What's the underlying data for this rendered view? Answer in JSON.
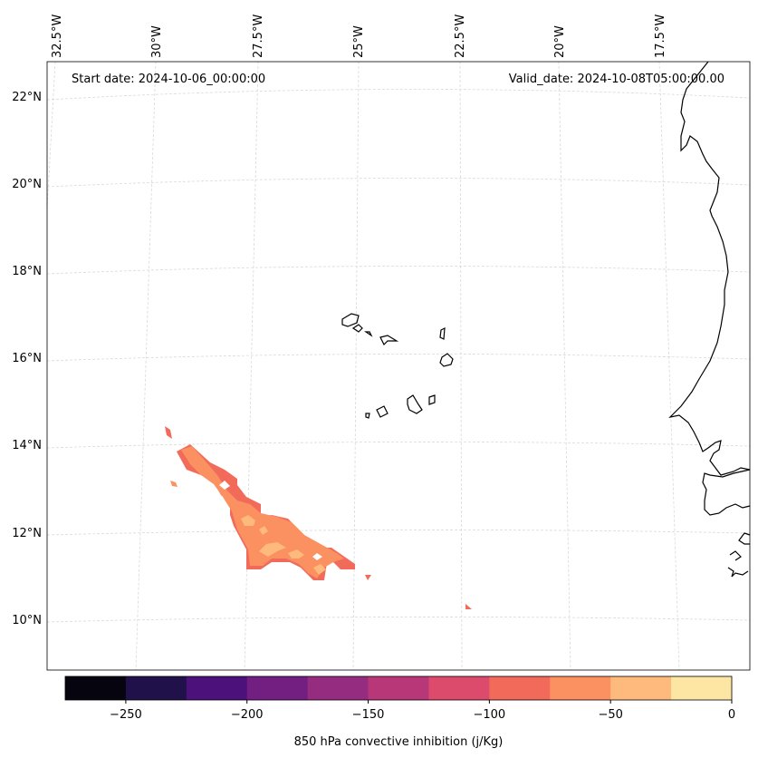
{
  "map": {
    "start_label": "Start date: 2024-10-06_00:00:00",
    "valid_label": "Valid_date: 2024-10-08T05:00:00.00",
    "lon_labels": [
      "32.5°W",
      "30°W",
      "27.5°W",
      "25°W",
      "22.5°W",
      "20°W",
      "17.5°W"
    ],
    "lat_labels": [
      "22°N",
      "20°N",
      "18°N",
      "16°N",
      "14°N",
      "12°N",
      "10°N"
    ],
    "field": "850 hPa convective inhibition",
    "region": "Cape Verde / West Africa coast",
    "colors": {
      "coastline": "#000000",
      "grid": "#d9d9d9"
    }
  },
  "colorbar": {
    "label": "850 hPa convective inhibition (j/Kg)",
    "min": -275,
    "max": 0,
    "bins": [
      {
        "from": -275,
        "to": -250,
        "color": "#05040f"
      },
      {
        "from": -250,
        "to": -225,
        "color": "#20114b"
      },
      {
        "from": -225,
        "to": -200,
        "color": "#4c117a"
      },
      {
        "from": -200,
        "to": -175,
        "color": "#721f81"
      },
      {
        "from": -175,
        "to": -150,
        "color": "#952c80"
      },
      {
        "from": -150,
        "to": -125,
        "color": "#b73779"
      },
      {
        "from": -125,
        "to": -100,
        "color": "#dc4b6b"
      },
      {
        "from": -100,
        "to": -75,
        "color": "#f16a5a"
      },
      {
        "from": -75,
        "to": -50,
        "color": "#fb9161"
      },
      {
        "from": -50,
        "to": -25,
        "color": "#feba7d"
      },
      {
        "from": -25,
        "to": 0,
        "color": "#fde6a4"
      }
    ],
    "ticks": [
      {
        "value": -250,
        "label": "−250"
      },
      {
        "value": -200,
        "label": "−200"
      },
      {
        "value": -150,
        "label": "−150"
      },
      {
        "value": -100,
        "label": "−100"
      },
      {
        "value": -50,
        "label": "−50"
      },
      {
        "value": 0,
        "label": "0"
      }
    ]
  }
}
